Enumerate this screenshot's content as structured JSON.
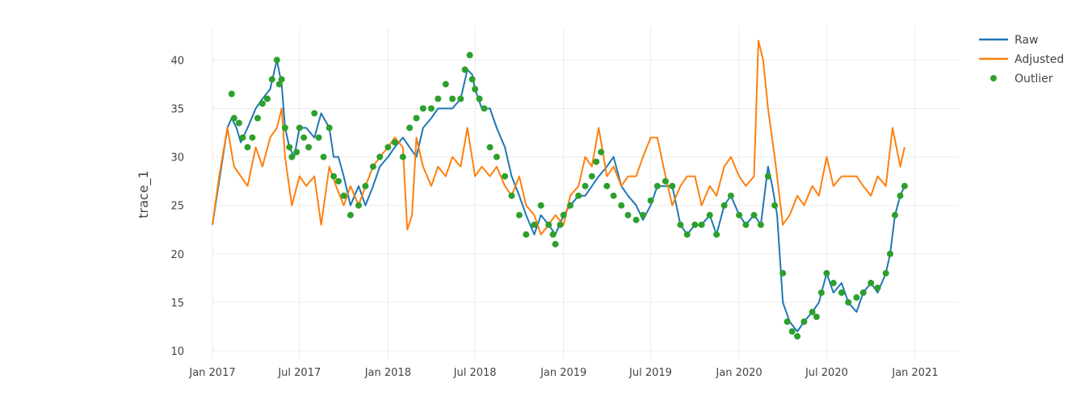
{
  "chart_data": {
    "type": "line",
    "title": "",
    "xlabel": "",
    "ylabel": "trace_1",
    "xlim": [
      "2017-01-01",
      "2021-01-01"
    ],
    "ylim": [
      10,
      43
    ],
    "x_ticks": [
      "Jan 2017",
      "Jul 2017",
      "Jan 2018",
      "Jul 2018",
      "Jan 2019",
      "Jul 2019",
      "Jan 2020",
      "Jul 2020",
      "Jan 2021"
    ],
    "x_tick_dates": [
      "2017-01-01",
      "2017-07-01",
      "2018-01-01",
      "2018-07-01",
      "2019-01-01",
      "2019-07-01",
      "2020-01-01",
      "2020-07-01",
      "2021-01-01"
    ],
    "y_ticks": [
      10,
      15,
      20,
      25,
      30,
      35,
      40
    ],
    "grid": true,
    "legend_position": "top-right",
    "series": [
      {
        "name": "Raw",
        "mode": "line",
        "color": "#1f77b4",
        "x": [
          "2017-01-01",
          "2017-01-15",
          "2017-02-01",
          "2017-02-10",
          "2017-02-20",
          "2017-03-01",
          "2017-03-15",
          "2017-04-01",
          "2017-04-15",
          "2017-05-01",
          "2017-05-15",
          "2017-05-25",
          "2017-06-01",
          "2017-06-10",
          "2017-06-20",
          "2017-07-01",
          "2017-07-15",
          "2017-08-01",
          "2017-08-15",
          "2017-09-01",
          "2017-09-10",
          "2017-09-20",
          "2017-10-01",
          "2017-10-15",
          "2017-11-01",
          "2017-11-15",
          "2017-12-01",
          "2017-12-15",
          "2018-01-01",
          "2018-01-15",
          "2018-02-01",
          "2018-02-15",
          "2018-03-01",
          "2018-03-15",
          "2018-04-01",
          "2018-04-15",
          "2018-05-01",
          "2018-05-15",
          "2018-06-01",
          "2018-06-15",
          "2018-06-25",
          "2018-07-01",
          "2018-07-15",
          "2018-08-01",
          "2018-08-15",
          "2018-09-01",
          "2018-09-15",
          "2018-10-01",
          "2018-10-15",
          "2018-11-01",
          "2018-11-15",
          "2018-12-01",
          "2018-12-15",
          "2019-01-01",
          "2019-01-15",
          "2019-02-01",
          "2019-02-15",
          "2019-03-01",
          "2019-03-15",
          "2019-04-01",
          "2019-04-15",
          "2019-05-01",
          "2019-05-15",
          "2019-06-01",
          "2019-06-15",
          "2019-07-01",
          "2019-07-15",
          "2019-08-01",
          "2019-08-15",
          "2019-09-01",
          "2019-09-15",
          "2019-10-01",
          "2019-10-15",
          "2019-11-01",
          "2019-11-15",
          "2019-12-01",
          "2019-12-15",
          "2020-01-01",
          "2020-01-15",
          "2020-02-01",
          "2020-02-15",
          "2020-03-01",
          "2020-03-10",
          "2020-03-20",
          "2020-04-01",
          "2020-04-15",
          "2020-05-01",
          "2020-05-15",
          "2020-06-01",
          "2020-06-15",
          "2020-07-01",
          "2020-07-15",
          "2020-08-01",
          "2020-08-15",
          "2020-09-01",
          "2020-09-15",
          "2020-10-01",
          "2020-10-15",
          "2020-11-01",
          "2020-11-10",
          "2020-11-20",
          "2020-12-01",
          "2020-12-10"
        ],
        "values": [
          23,
          27.5,
          33,
          34,
          33,
          31.5,
          33,
          35,
          36,
          37,
          40,
          37.5,
          33,
          31,
          30,
          33,
          33,
          32,
          34.5,
          33,
          30,
          30,
          28,
          25,
          27,
          25,
          27,
          29,
          30,
          31,
          32,
          31,
          30,
          33,
          34,
          35,
          35,
          35,
          36,
          39,
          38.5,
          37,
          35,
          35,
          33,
          31,
          28,
          26,
          24,
          22,
          24,
          23,
          22,
          24,
          25,
          26,
          26,
          27,
          28,
          29,
          30,
          27,
          26,
          25,
          23.5,
          25,
          27,
          27,
          27,
          23,
          22,
          23,
          23,
          24,
          22,
          25,
          26,
          24,
          23,
          24,
          23,
          29,
          27,
          24,
          15,
          13,
          12,
          13,
          14,
          15,
          18,
          16,
          17,
          15,
          14,
          16,
          17,
          16,
          18,
          20,
          24,
          26,
          27
        ]
      },
      {
        "name": "Adjusted",
        "mode": "line",
        "color": "#ff7f0e",
        "x": [
          "2017-01-01",
          "2017-01-15",
          "2017-02-01",
          "2017-02-15",
          "2017-03-01",
          "2017-03-15",
          "2017-04-01",
          "2017-04-15",
          "2017-05-01",
          "2017-05-15",
          "2017-05-25",
          "2017-06-01",
          "2017-06-15",
          "2017-07-01",
          "2017-07-15",
          "2017-08-01",
          "2017-08-15",
          "2017-09-01",
          "2017-09-15",
          "2017-10-01",
          "2017-10-15",
          "2017-11-01",
          "2017-11-15",
          "2017-12-01",
          "2017-12-15",
          "2018-01-01",
          "2018-01-15",
          "2018-02-01",
          "2018-02-10",
          "2018-02-20",
          "2018-03-01",
          "2018-03-15",
          "2018-04-01",
          "2018-04-15",
          "2018-05-01",
          "2018-05-15",
          "2018-06-01",
          "2018-06-15",
          "2018-07-01",
          "2018-07-15",
          "2018-08-01",
          "2018-08-15",
          "2018-09-01",
          "2018-09-15",
          "2018-10-01",
          "2018-10-15",
          "2018-11-01",
          "2018-11-15",
          "2018-12-01",
          "2018-12-15",
          "2019-01-01",
          "2019-01-15",
          "2019-02-01",
          "2019-02-15",
          "2019-03-01",
          "2019-03-15",
          "2019-04-01",
          "2019-04-15",
          "2019-05-01",
          "2019-05-15",
          "2019-06-01",
          "2019-06-15",
          "2019-07-01",
          "2019-07-15",
          "2019-08-01",
          "2019-08-15",
          "2019-09-01",
          "2019-09-15",
          "2019-10-01",
          "2019-10-15",
          "2019-11-01",
          "2019-11-15",
          "2019-12-01",
          "2019-12-15",
          "2020-01-01",
          "2020-01-15",
          "2020-02-01",
          "2020-02-10",
          "2020-02-20",
          "2020-03-01",
          "2020-03-15",
          "2020-04-01",
          "2020-04-15",
          "2020-05-01",
          "2020-05-15",
          "2020-06-01",
          "2020-06-15",
          "2020-07-01",
          "2020-07-15",
          "2020-08-01",
          "2020-08-15",
          "2020-09-01",
          "2020-09-15",
          "2020-10-01",
          "2020-10-15",
          "2020-11-01",
          "2020-11-15",
          "2020-12-01",
          "2020-12-10"
        ],
        "values": [
          23,
          28,
          33,
          29,
          28,
          27,
          31,
          29,
          32,
          33,
          35,
          30,
          25,
          28,
          27,
          28,
          23,
          29,
          27,
          25,
          27,
          25,
          27,
          29,
          30,
          31,
          32,
          31,
          22.5,
          24,
          32,
          29,
          27,
          29,
          28,
          30,
          29,
          33,
          28,
          29,
          28,
          29,
          27,
          26,
          28,
          25,
          24,
          22,
          23,
          24,
          23,
          26,
          27,
          30,
          29,
          33,
          28,
          29,
          27,
          28,
          28,
          30,
          32,
          32,
          28,
          25,
          27,
          28,
          28,
          25,
          27,
          26,
          29,
          30,
          28,
          27,
          28,
          42,
          40,
          35,
          30,
          23,
          24,
          26,
          25,
          27,
          26,
          30,
          27,
          28,
          28,
          28,
          27,
          26,
          28,
          27,
          33,
          29,
          31
        ]
      },
      {
        "name": "Outlier",
        "mode": "markers",
        "color": "#2ca02c",
        "x": [
          "2017-02-10",
          "2017-02-15",
          "2017-02-25",
          "2017-03-05",
          "2017-03-15",
          "2017-03-25",
          "2017-04-05",
          "2017-04-15",
          "2017-04-25",
          "2017-05-05",
          "2017-05-15",
          "2017-05-20",
          "2017-05-25",
          "2017-06-01",
          "2017-06-10",
          "2017-06-15",
          "2017-06-25",
          "2017-07-01",
          "2017-07-10",
          "2017-07-20",
          "2017-08-01",
          "2017-08-10",
          "2017-08-20",
          "2017-09-01",
          "2017-09-10",
          "2017-09-20",
          "2017-10-01",
          "2017-10-15",
          "2017-11-01",
          "2017-11-15",
          "2017-12-01",
          "2017-12-15",
          "2018-01-01",
          "2018-01-15",
          "2018-02-01",
          "2018-02-15",
          "2018-03-01",
          "2018-03-15",
          "2018-04-01",
          "2018-04-15",
          "2018-05-01",
          "2018-05-15",
          "2018-06-01",
          "2018-06-10",
          "2018-06-20",
          "2018-06-25",
          "2018-07-01",
          "2018-07-10",
          "2018-07-20",
          "2018-08-01",
          "2018-08-15",
          "2018-09-01",
          "2018-09-15",
          "2018-10-01",
          "2018-10-15",
          "2018-11-01",
          "2018-11-15",
          "2018-12-01",
          "2018-12-10",
          "2018-12-15",
          "2018-12-25",
          "2019-01-01",
          "2019-01-15",
          "2019-02-01",
          "2019-02-15",
          "2019-03-01",
          "2019-03-10",
          "2019-03-20",
          "2019-04-01",
          "2019-04-15",
          "2019-05-01",
          "2019-05-15",
          "2019-06-01",
          "2019-06-15",
          "2019-07-01",
          "2019-07-15",
          "2019-08-01",
          "2019-08-15",
          "2019-09-01",
          "2019-09-15",
          "2019-10-01",
          "2019-10-15",
          "2019-11-01",
          "2019-11-15",
          "2019-12-01",
          "2019-12-15",
          "2020-01-01",
          "2020-01-15",
          "2020-02-01",
          "2020-02-15",
          "2020-03-01",
          "2020-03-15",
          "2020-04-01",
          "2020-04-10",
          "2020-04-20",
          "2020-05-01",
          "2020-05-15",
          "2020-06-01",
          "2020-06-10",
          "2020-06-20",
          "2020-07-01",
          "2020-07-15",
          "2020-08-01",
          "2020-08-15",
          "2020-09-01",
          "2020-09-15",
          "2020-10-01",
          "2020-10-15",
          "2020-11-01",
          "2020-11-10",
          "2020-11-20",
          "2020-12-01",
          "2020-12-10"
        ],
        "values": [
          36.5,
          34,
          33.5,
          32,
          31,
          32,
          34,
          35.5,
          36,
          38,
          40,
          37.5,
          38,
          33,
          31,
          30,
          30.5,
          33,
          32,
          31,
          34.5,
          32,
          30,
          33,
          28,
          27.5,
          26,
          24,
          25,
          27,
          29,
          30,
          31,
          31.5,
          30,
          33,
          34,
          35,
          35,
          36,
          37.5,
          36,
          36,
          39,
          40.5,
          38,
          37,
          36,
          35,
          31,
          30,
          28,
          26,
          24,
          22,
          23,
          25,
          23,
          22,
          21,
          23,
          24,
          25,
          26,
          27,
          28,
          29.5,
          30.5,
          27,
          26,
          25,
          24,
          23.5,
          24,
          25.5,
          27,
          27.5,
          27,
          23,
          22,
          23,
          23,
          24,
          22,
          25,
          26,
          24,
          23,
          24,
          23,
          28,
          25,
          18,
          13,
          12,
          11.5,
          13,
          14,
          13.5,
          16,
          18,
          17,
          16,
          15,
          15.5,
          16,
          17,
          16.5,
          18,
          20,
          24,
          26,
          27
        ]
      }
    ]
  }
}
